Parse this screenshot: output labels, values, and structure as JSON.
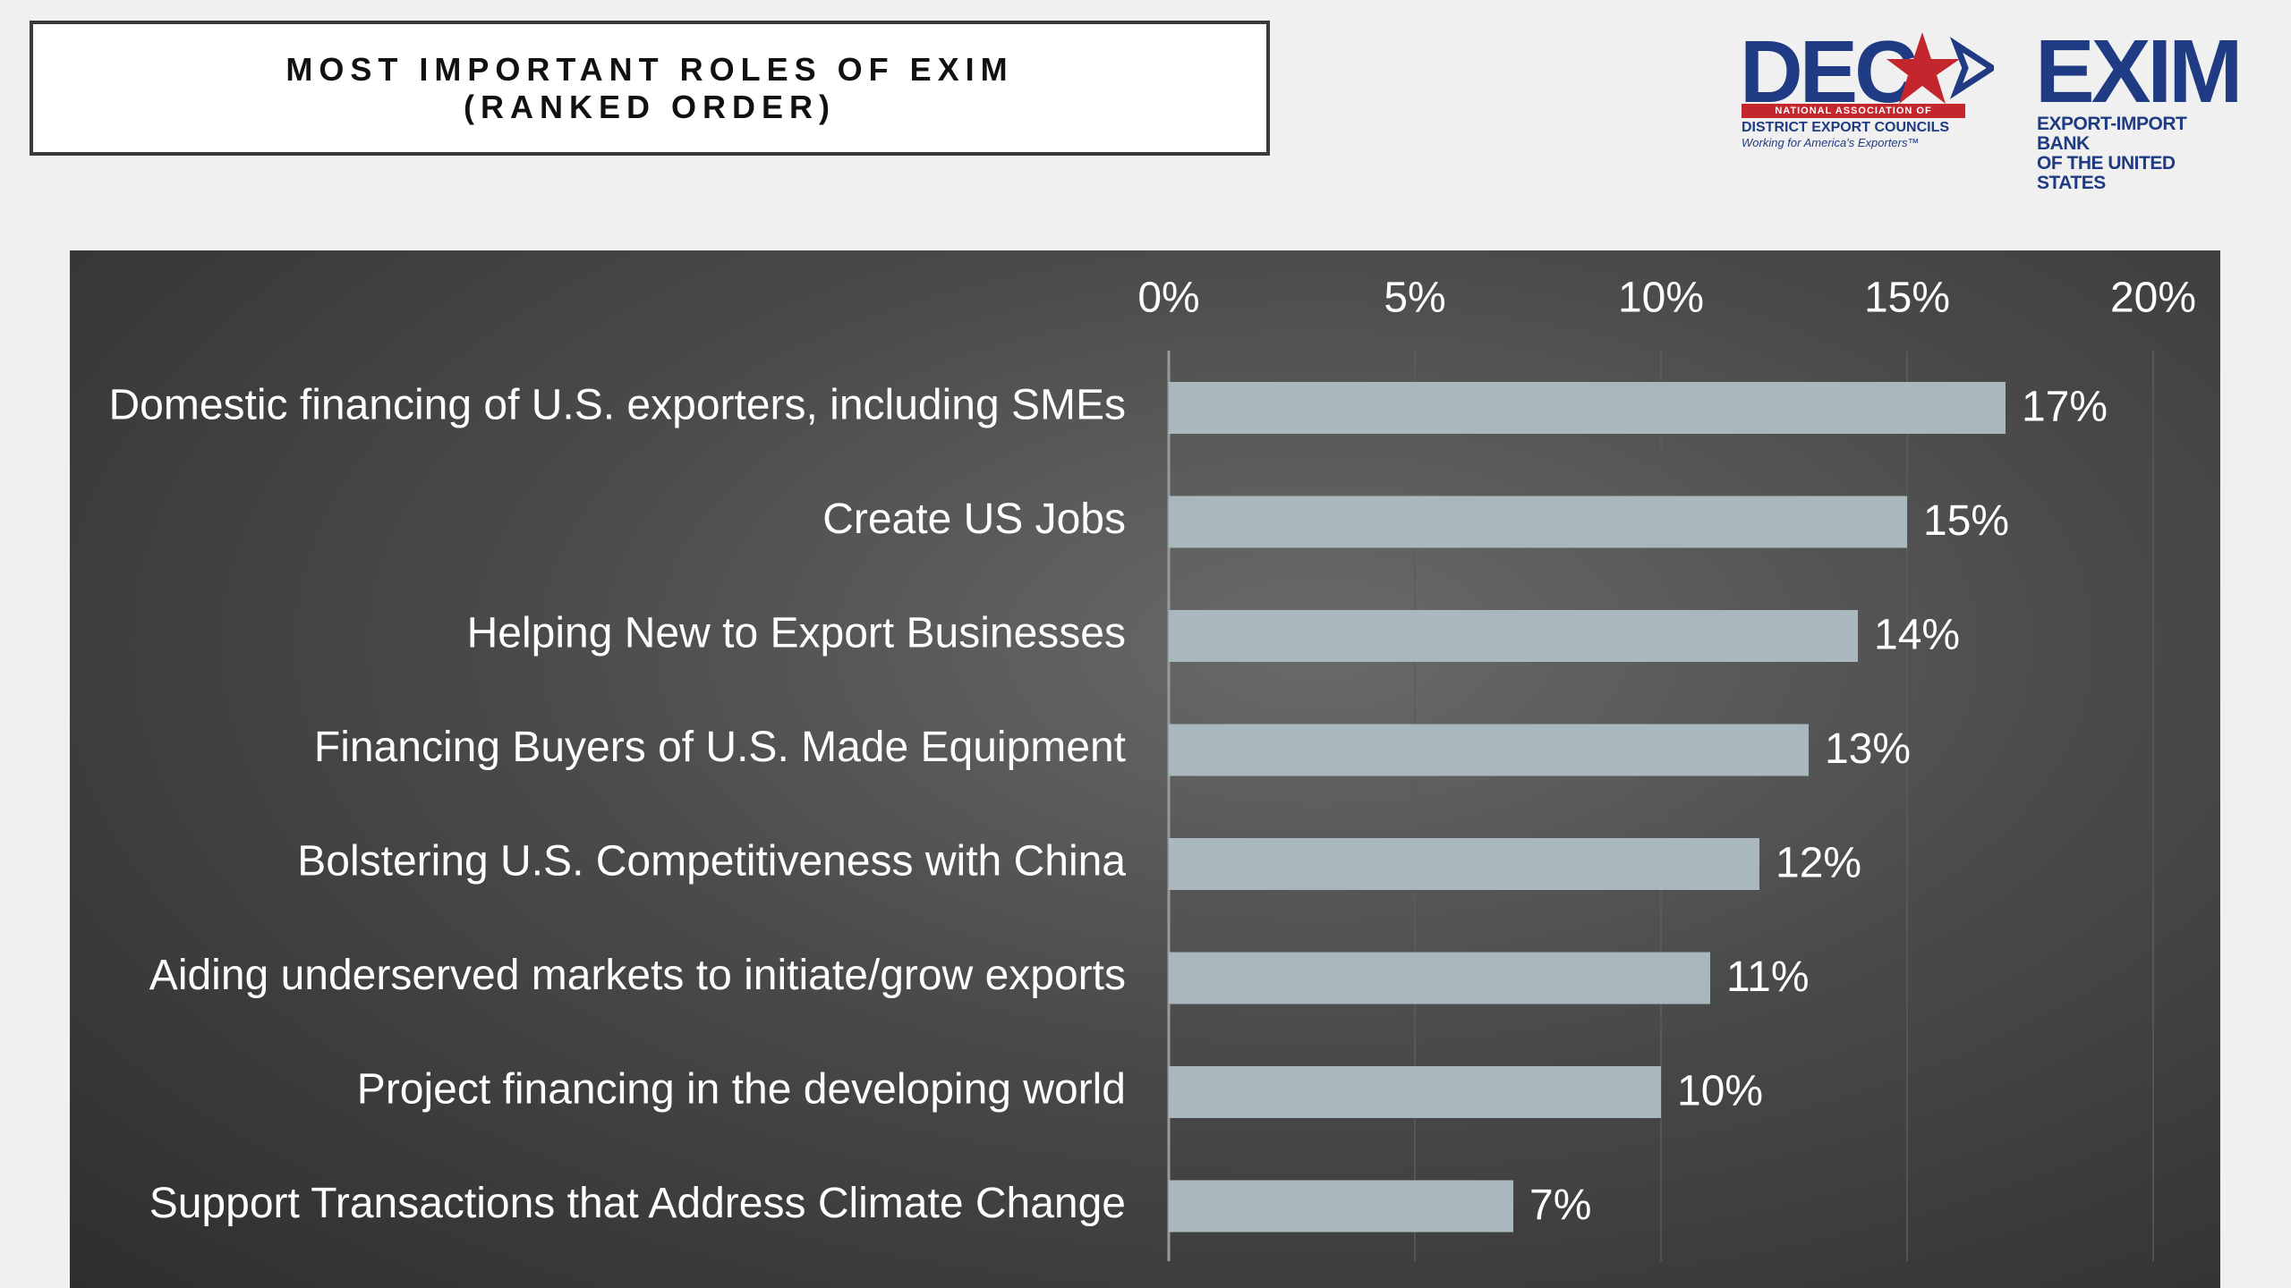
{
  "header": {
    "title_line1": "MOST IMPORTANT ROLES OF EXIM",
    "title_line2": "(RANKED ORDER)"
  },
  "logos": {
    "dec": {
      "word": "DEC",
      "line1": "NATIONAL ASSOCIATION OF",
      "line2": "DISTRICT EXPORT COUNCILS",
      "line3": "Working for America's Exporters™"
    },
    "exim": {
      "word": "EXIM",
      "line1": "EXPORT-IMPORT BANK",
      "line2": "OF THE UNITED STATES"
    }
  },
  "colors": {
    "bar": "#a8b8bc",
    "panel_dark": "#2e2e2e",
    "text_light": "#ffffff",
    "brand_blue": "#1f3b84",
    "brand_red": "#c4262e"
  },
  "chart_data": {
    "type": "bar",
    "orientation": "horizontal",
    "categories": [
      "Domestic financing of U.S. exporters, including SMEs",
      "Create US Jobs",
      "Helping New to Export Businesses",
      "Financing Buyers of U.S. Made Equipment",
      "Bolstering U.S. Competitiveness with China",
      "Aiding underserved markets to initiate/grow exports",
      "Project financing in the developing world",
      "Support Transactions that Address Climate Change"
    ],
    "values": [
      17,
      15,
      14,
      13,
      12,
      11,
      10,
      7
    ],
    "value_labels": [
      "17%",
      "15%",
      "14%",
      "13%",
      "12%",
      "11%",
      "10%",
      "7%"
    ],
    "xlim": [
      0,
      20
    ],
    "xticks": [
      0,
      5,
      10,
      15,
      20
    ],
    "xtick_labels": [
      "0%",
      "5%",
      "10%",
      "15%",
      "20%"
    ],
    "x_axis_position": "top",
    "grid": true,
    "legend": "none"
  }
}
